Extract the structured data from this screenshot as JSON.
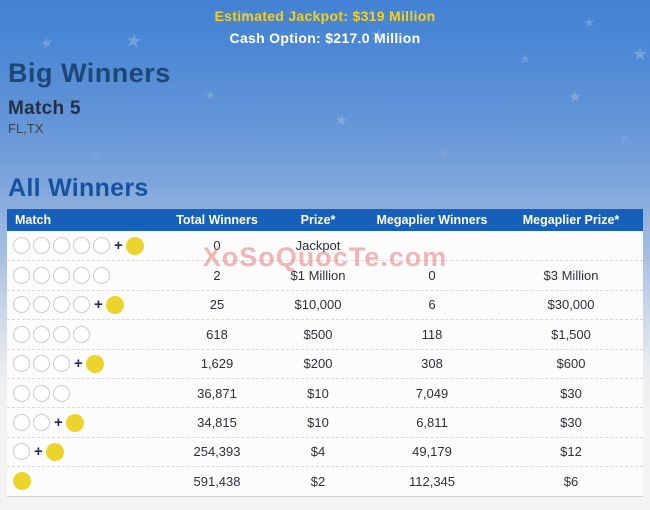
{
  "banner": {
    "jackpot_label": "Estimated Jackpot:",
    "jackpot_value": "$319 Million",
    "cash_option": "Cash Option: $217.0 Million"
  },
  "headings": {
    "big_winners": "Big Winners",
    "match_title": "Match 5",
    "states": "FL,TX",
    "all_winners": "All Winners"
  },
  "watermark": "XoSoQuocTe.com",
  "colors": {
    "header_bar_blue": "#1660bb",
    "mega_ball_yellow": "#ecd42d",
    "jackpot_text_yellow": "#f3d021",
    "heading_blue": "#1553a1",
    "watermark_pink": "#e77a7a"
  },
  "table": {
    "columns": [
      "Match",
      "Total Winners",
      "Prize*",
      "Megaplier Winners",
      "Megaplier Prize*"
    ],
    "rows": [
      {
        "white_balls": 5,
        "mega_ball": true,
        "total_winners": "0",
        "prize": "Jackpot",
        "megaplier_winners": "",
        "megaplier_prize": ""
      },
      {
        "white_balls": 5,
        "mega_ball": false,
        "total_winners": "2",
        "prize": "$1 Million",
        "megaplier_winners": "0",
        "megaplier_prize": "$3 Million"
      },
      {
        "white_balls": 4,
        "mega_ball": true,
        "total_winners": "25",
        "prize": "$10,000",
        "megaplier_winners": "6",
        "megaplier_prize": "$30,000"
      },
      {
        "white_balls": 4,
        "mega_ball": false,
        "total_winners": "618",
        "prize": "$500",
        "megaplier_winners": "118",
        "megaplier_prize": "$1,500"
      },
      {
        "white_balls": 3,
        "mega_ball": true,
        "total_winners": "1,629",
        "prize": "$200",
        "megaplier_winners": "308",
        "megaplier_prize": "$600"
      },
      {
        "white_balls": 3,
        "mega_ball": false,
        "total_winners": "36,871",
        "prize": "$10",
        "megaplier_winners": "7,049",
        "megaplier_prize": "$30"
      },
      {
        "white_balls": 2,
        "mega_ball": true,
        "total_winners": "34,815",
        "prize": "$10",
        "megaplier_winners": "6,811",
        "megaplier_prize": "$30"
      },
      {
        "white_balls": 1,
        "mega_ball": true,
        "total_winners": "254,393",
        "prize": "$4",
        "megaplier_winners": "49,179",
        "megaplier_prize": "$12"
      },
      {
        "white_balls": 0,
        "mega_ball": true,
        "total_winners": "591,438",
        "prize": "$2",
        "megaplier_winners": "112,345",
        "megaplier_prize": "$6"
      }
    ]
  }
}
